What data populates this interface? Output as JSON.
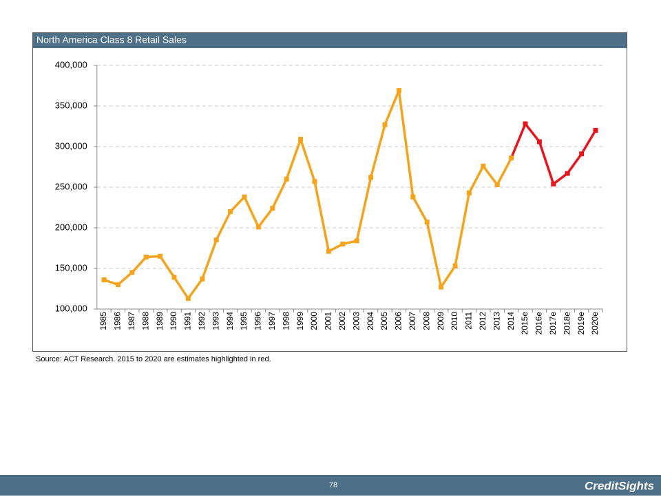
{
  "chart_data": {
    "type": "line",
    "title": "North America Class 8 Retail Sales",
    "note": "Source: ACT Research. 2015 to 2020 are estimates highlighted in red.",
    "categories": [
      "1985",
      "1986",
      "1987",
      "1988",
      "1989",
      "1990",
      "1991",
      "1992",
      "1993",
      "1994",
      "1995",
      "1996",
      "1997",
      "1998",
      "1999",
      "2000",
      "2001",
      "2002",
      "2003",
      "2004",
      "2005",
      "2006",
      "2007",
      "2008",
      "2009",
      "2010",
      "2011",
      "2012",
      "2013",
      "2014",
      "2015e",
      "2016e",
      "2017e",
      "2018e",
      "2019e",
      "2020e"
    ],
    "series": [
      {
        "color": "#f5a31a",
        "values": [
          136000,
          130000,
          145000,
          164000,
          165000,
          139000,
          113000,
          137000,
          185000,
          220000,
          238000,
          201000,
          224000,
          260000,
          309000,
          257000,
          171000,
          180000,
          184000,
          262000,
          327000,
          369000,
          238000,
          207000,
          127000,
          153000,
          243000,
          276000,
          253000,
          286000,
          null,
          null,
          null,
          null,
          null,
          null
        ]
      },
      {
        "color": "#e8141b",
        "values": [
          null,
          null,
          null,
          null,
          null,
          null,
          null,
          null,
          null,
          null,
          null,
          null,
          null,
          null,
          null,
          null,
          null,
          null,
          null,
          null,
          null,
          null,
          null,
          null,
          null,
          null,
          null,
          null,
          null,
          null,
          328000,
          306000,
          254000,
          267000,
          291000,
          320000
        ]
      }
    ],
    "ylim": [
      100000,
      400000
    ],
    "yticks": [
      {
        "value": 100000,
        "label": "100,000"
      },
      {
        "value": 150000,
        "label": "150,000"
      },
      {
        "value": 200000,
        "label": "200,000"
      },
      {
        "value": 250000,
        "label": "250,000"
      },
      {
        "value": 300000,
        "label": "300,000"
      },
      {
        "value": 350000,
        "label": "350,000"
      },
      {
        "value": 400000,
        "label": "400,000"
      }
    ],
    "grid": true
  },
  "footer": {
    "page": "78",
    "brand": "CreditSights"
  }
}
